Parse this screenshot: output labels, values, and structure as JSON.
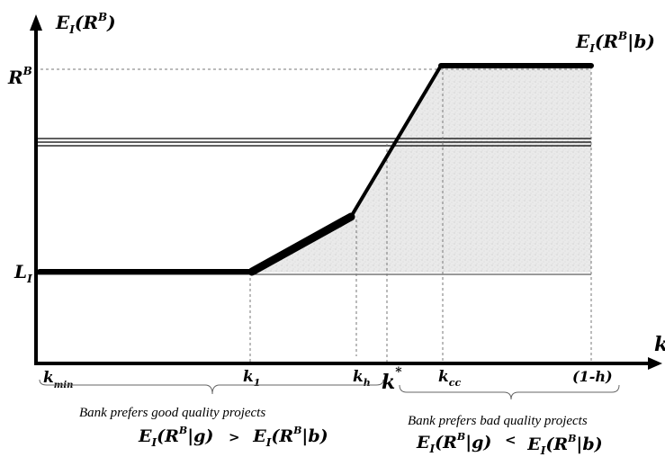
{
  "axes": {
    "y_label": "E_I(R^B)",
    "x_label": "k"
  },
  "curve_label": "E_I(R^B|b)",
  "y_ticks": {
    "rb": "R^B",
    "li": "L_I"
  },
  "x_ticks": {
    "kmin": "k_min",
    "k1": "k_1",
    "kh": "k_h",
    "kstar": "k*",
    "kcc": "k_cc",
    "one_minus_h": "(1-h)"
  },
  "captions": {
    "good_text": "Bank prefers good quality projects",
    "good_eq_lhs": "E_I(R^B|g)",
    "good_eq_op": ">",
    "good_eq_rhs": "E_I(R^B|b)",
    "bad_text": "Bank prefers bad quality projects",
    "bad_eq_lhs": "E_I(R^B|g)",
    "bad_eq_op": "<",
    "bad_eq_rhs": "E_I(R^B|b)"
  }
}
